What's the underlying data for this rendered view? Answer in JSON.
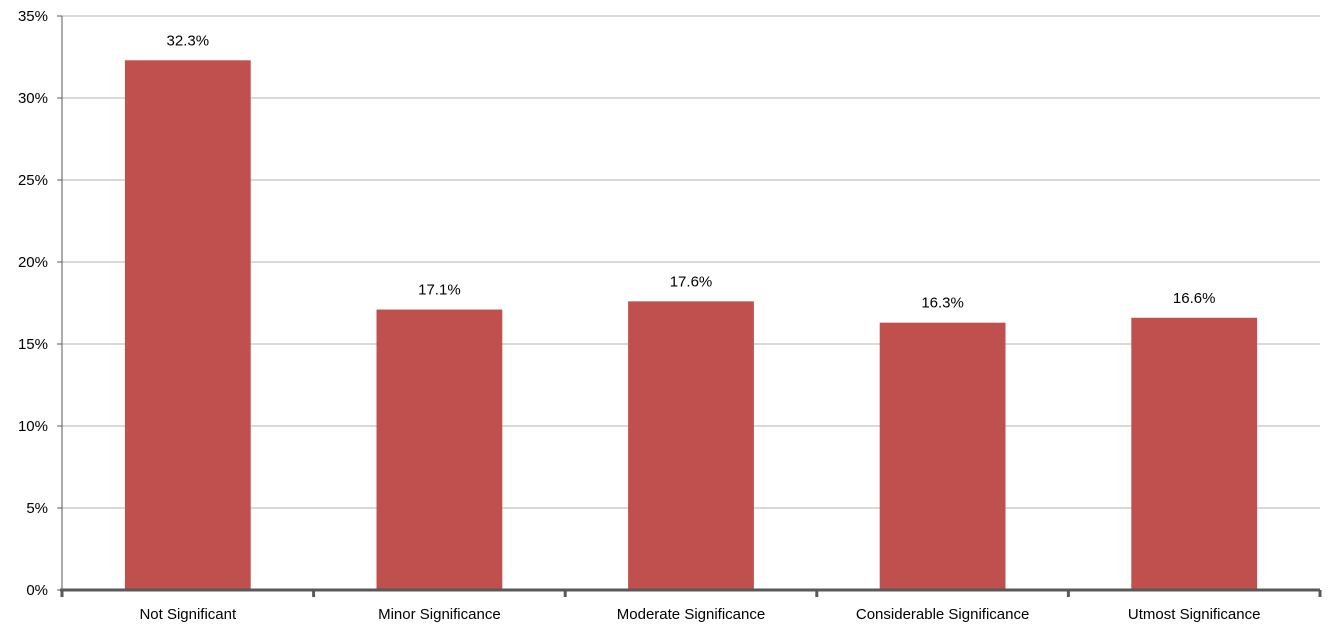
{
  "chart_data": {
    "type": "bar",
    "categories": [
      "Not Significant",
      "Minor Significance",
      "Moderate Significance",
      "Considerable Significance",
      "Utmost Significance"
    ],
    "values": [
      32.3,
      17.1,
      17.6,
      16.3,
      16.6
    ],
    "data_labels": [
      "32.3%",
      "17.1%",
      "17.6%",
      "16.3%",
      "16.6%"
    ],
    "y_ticks": [
      0,
      5,
      10,
      15,
      20,
      25,
      30,
      35
    ],
    "y_tick_labels": [
      "0%",
      "5%",
      "10%",
      "15%",
      "20%",
      "25%",
      "30%",
      "35%"
    ],
    "ylim": [
      0,
      35
    ],
    "grid": true,
    "legend": "none",
    "title": "",
    "xlabel": "",
    "ylabel": "",
    "colors": {
      "bar": "#C0504D",
      "grid": "#B3B3B3",
      "axis": "#595959",
      "text": "#000000"
    }
  }
}
